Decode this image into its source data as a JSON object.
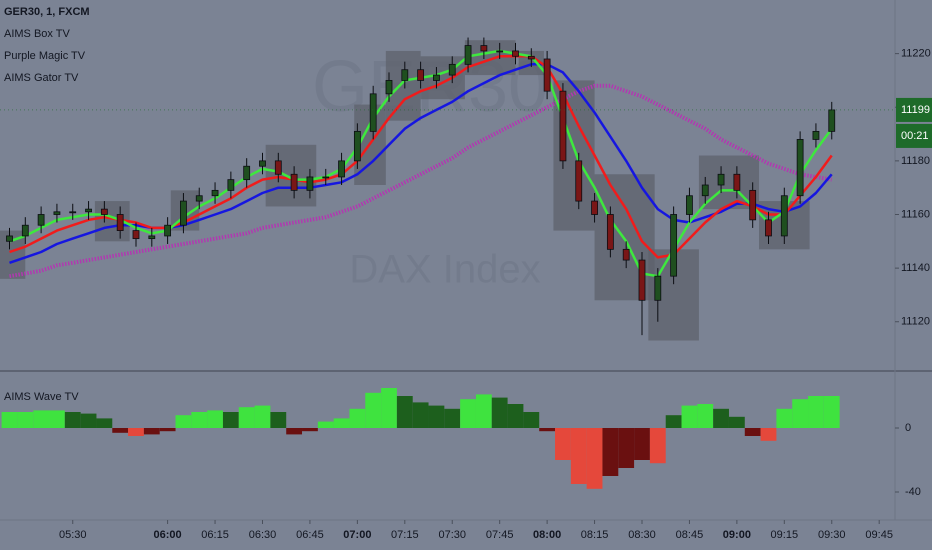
{
  "chart_data": [
    {
      "type": "candlestick",
      "title": "GER30, 1, FXCM",
      "indicators": [
        "AIMS Box TV",
        "Purple Magic TV",
        "AIMS Gator TV"
      ],
      "watermark": [
        "GER30",
        "DAX Index"
      ],
      "xlim": [
        "05:07",
        "09:50"
      ],
      "xticks": [
        "05:30",
        "06:00",
        "06:15",
        "06:30",
        "06:45",
        "07:00",
        "07:15",
        "07:30",
        "07:45",
        "08:00",
        "08:15",
        "08:30",
        "08:45",
        "09:00",
        "09:15",
        "09:30",
        "09:45"
      ],
      "ylim": [
        11102,
        11240
      ],
      "yticks": [
        11120,
        11140,
        11160,
        11180,
        11200,
        11220
      ],
      "last_price": 11199,
      "countdown": "00:21",
      "x": [
        "05:10",
        "05:15",
        "05:20",
        "05:25",
        "05:30",
        "05:35",
        "05:40",
        "05:45",
        "05:50",
        "05:55",
        "06:00",
        "06:05",
        "06:10",
        "06:15",
        "06:20",
        "06:25",
        "06:30",
        "06:35",
        "06:40",
        "06:45",
        "06:50",
        "06:55",
        "07:00",
        "07:05",
        "07:10",
        "07:15",
        "07:20",
        "07:25",
        "07:30",
        "07:35",
        "07:40",
        "07:45",
        "07:50",
        "07:55",
        "08:00",
        "08:05",
        "08:10",
        "08:15",
        "08:20",
        "08:25",
        "08:30",
        "08:35",
        "08:40",
        "08:45",
        "08:50",
        "08:55",
        "09:00",
        "09:05",
        "09:10",
        "09:15",
        "09:20",
        "09:25",
        "09:30"
      ],
      "open": [
        11150,
        11152,
        11156,
        11160,
        11161,
        11161,
        11162,
        11160,
        11154,
        11151,
        11152,
        11156,
        11165,
        11167,
        11169,
        11173,
        11178,
        11180,
        11175,
        11169,
        11174,
        11174,
        11180,
        11191,
        11205,
        11210,
        11214,
        11210,
        11212,
        11216,
        11223,
        11221,
        11221,
        11219,
        11218,
        11206,
        11180,
        11165,
        11160,
        11147,
        11143,
        11128,
        11137,
        11160,
        11167,
        11171,
        11175,
        11169,
        11158,
        11152,
        11167,
        11188,
        11191
      ],
      "high": [
        11155,
        11159,
        11163,
        11164,
        11164,
        11165,
        11165,
        11163,
        11157,
        11155,
        11159,
        11168,
        11170,
        11172,
        11176,
        11181,
        11183,
        11183,
        11178,
        11177,
        11177,
        11183,
        11194,
        11208,
        11213,
        11217,
        11217,
        11215,
        11219,
        11226,
        11226,
        11224,
        11224,
        11222,
        11221,
        11209,
        11183,
        11168,
        11163,
        11150,
        11146,
        11140,
        11163,
        11170,
        11174,
        11178,
        11178,
        11172,
        11161,
        11170,
        11191,
        11194,
        11202
      ],
      "low": [
        11147,
        11149,
        11153,
        11157,
        11158,
        11158,
        11157,
        11151,
        11148,
        11148,
        11149,
        11153,
        11162,
        11164,
        11166,
        11170,
        11175,
        11172,
        11166,
        11166,
        11171,
        11171,
        11177,
        11188,
        11202,
        11207,
        11207,
        11207,
        11209,
        11213,
        11218,
        11218,
        11216,
        11215,
        11203,
        11177,
        11162,
        11157,
        11144,
        11140,
        11115,
        11120,
        11134,
        11157,
        11164,
        11168,
        11166,
        11155,
        11149,
        11149,
        11164,
        11185,
        11188
      ],
      "close": [
        11152,
        11156,
        11160,
        11161,
        11161,
        11162,
        11160,
        11154,
        11151,
        11152,
        11156,
        11165,
        11167,
        11169,
        11173,
        11178,
        11180,
        11175,
        11169,
        11174,
        11174,
        11180,
        11191,
        11205,
        11210,
        11214,
        11210,
        11212,
        11216,
        11223,
        11221,
        11221,
        11219,
        11218,
        11206,
        11180,
        11165,
        11160,
        11147,
        11143,
        11128,
        11137,
        11160,
        11167,
        11171,
        11175,
        11169,
        11158,
        11152,
        11167,
        11188,
        11191,
        11199
      ],
      "up_color": "#1f4f1f",
      "down_color": "#7a1616",
      "series": [
        {
          "color": "#b03ab0",
          "style": "dotted",
          "values": [
            11137,
            11138,
            11139,
            11141,
            11142,
            11143,
            11144,
            11145,
            11146,
            11147,
            11148,
            11149,
            11150,
            11151,
            11152,
            11153,
            11155,
            11156,
            11157,
            11158,
            11159,
            11161,
            11163,
            11166,
            11169,
            11172,
            11175,
            11178,
            11181,
            11185,
            11188,
            11191,
            11194,
            11197,
            11200,
            11203,
            11206,
            11208,
            11208,
            11206,
            11204,
            11201,
            11198,
            11195,
            11192,
            11188,
            11185,
            11182,
            11179,
            11177,
            11175,
            11174,
            11173
          ]
        },
        {
          "color": "#1616e0",
          "style": "solid",
          "values": [
            11142,
            11144,
            11146,
            11149,
            11151,
            11153,
            11155,
            11156,
            11156,
            11155,
            11155,
            11156,
            11158,
            11160,
            11162,
            11165,
            11168,
            11170,
            11170,
            11170,
            11171,
            11172,
            11175,
            11180,
            11186,
            11192,
            11196,
            11199,
            11202,
            11206,
            11209,
            11212,
            11214,
            11216,
            11216,
            11213,
            11206,
            11198,
            11189,
            11180,
            11170,
            11162,
            11158,
            11157,
            11159,
            11161,
            11164,
            11164,
            11162,
            11161,
            11163,
            11168,
            11175
          ]
        },
        {
          "color": "#f01c1c",
          "style": "solid",
          "values": [
            11146,
            11148,
            11151,
            11154,
            11156,
            11158,
            11159,
            11158,
            11157,
            11155,
            11155,
            11157,
            11160,
            11163,
            11166,
            11170,
            11173,
            11174,
            11173,
            11172,
            11173,
            11175,
            11180,
            11188,
            11196,
            11203,
            11206,
            11208,
            11211,
            11215,
            11217,
            11219,
            11219,
            11219,
            11215,
            11205,
            11193,
            11182,
            11171,
            11162,
            11150,
            11144,
            11145,
            11151,
            11157,
            11162,
            11165,
            11163,
            11160,
            11160,
            11167,
            11174,
            11182
          ]
        },
        {
          "color": "#3ee83e",
          "style": "solid",
          "values": [
            11150,
            11152,
            11155,
            11158,
            11159,
            11160,
            11160,
            11158,
            11155,
            11153,
            11154,
            11159,
            11163,
            11166,
            11170,
            11174,
            11177,
            11176,
            11173,
            11173,
            11174,
            11177,
            11185,
            11196,
            11204,
            11210,
            11211,
            11212,
            11214,
            11219,
            11220,
            11221,
            11220,
            11219,
            11212,
            11196,
            11180,
            11170,
            11158,
            11150,
            11138,
            11137,
            11147,
            11157,
            11164,
            11169,
            11169,
            11163,
            11157,
            11161,
            11175,
            11184,
            11192
          ]
        }
      ],
      "box_color": "#5d626c",
      "boxes": [
        {
          "x0": "05:07",
          "x1": "05:15",
          "low": 11136,
          "high": 11154
        },
        {
          "x0": "05:37",
          "x1": "05:48",
          "low": 11150,
          "high": 11165
        },
        {
          "x0": "06:01",
          "x1": "06:10",
          "low": 11154,
          "high": 11169
        },
        {
          "x0": "06:31",
          "x1": "06:47",
          "low": 11163,
          "high": 11186
        },
        {
          "x0": "06:59",
          "x1": "07:09",
          "low": 11171,
          "high": 11201
        },
        {
          "x0": "07:09",
          "x1": "07:20",
          "low": 11195,
          "high": 11221
        },
        {
          "x0": "07:20",
          "x1": "07:34",
          "low": 11203,
          "high": 11219
        },
        {
          "x0": "07:34",
          "x1": "07:50",
          "low": 11212,
          "high": 11225
        },
        {
          "x0": "07:51",
          "x1": "07:59",
          "low": 11212,
          "high": 11221
        },
        {
          "x0": "08:02",
          "x1": "08:15",
          "low": 11154,
          "high": 11210
        },
        {
          "x0": "08:15",
          "x1": "08:34",
          "low": 11128,
          "high": 11175
        },
        {
          "x0": "08:32",
          "x1": "08:48",
          "low": 11113,
          "high": 11147
        },
        {
          "x0": "08:48",
          "x1": "09:07",
          "low": 11162,
          "high": 11182
        },
        {
          "x0": "09:07",
          "x1": "09:23",
          "low": 11147,
          "high": 11165
        }
      ]
    },
    {
      "type": "histogram",
      "title": "AIMS Wave TV",
      "xlim": [
        "05:07",
        "09:50"
      ],
      "x": [
        "05:10",
        "05:15",
        "05:20",
        "05:25",
        "05:30",
        "05:35",
        "05:40",
        "05:45",
        "05:50",
        "05:55",
        "06:00",
        "06:05",
        "06:10",
        "06:15",
        "06:20",
        "06:25",
        "06:30",
        "06:35",
        "06:40",
        "06:45",
        "06:50",
        "06:55",
        "07:00",
        "07:05",
        "07:10",
        "07:15",
        "07:20",
        "07:25",
        "07:30",
        "07:35",
        "07:40",
        "07:45",
        "07:50",
        "07:55",
        "08:00",
        "08:05",
        "08:10",
        "08:15",
        "08:20",
        "08:25",
        "08:30",
        "08:35",
        "08:40",
        "08:45",
        "08:50",
        "08:55",
        "09:00",
        "09:05",
        "09:10",
        "09:15",
        "09:20",
        "09:25",
        "09:30"
      ],
      "values": [
        10,
        10,
        11,
        11,
        10,
        9,
        6,
        -3,
        -5,
        -4,
        -2,
        8,
        10,
        11,
        10,
        13,
        14,
        10,
        -4,
        -2,
        4,
        6,
        12,
        22,
        25,
        20,
        16,
        14,
        12,
        18,
        21,
        19,
        15,
        10,
        -2,
        -20,
        -35,
        -38,
        -30,
        -25,
        -20,
        -22,
        8,
        14,
        15,
        12,
        7,
        -5,
        -8,
        12,
        18,
        20,
        20
      ],
      "ylim": [
        -57.5,
        35
      ],
      "yticks": [
        0,
        -40
      ],
      "up_color": "#3fe33f",
      "up_fading_color": "#1d5f1d",
      "down_color": "#e5483b",
      "down_fading_color": "#6a1010"
    }
  ]
}
